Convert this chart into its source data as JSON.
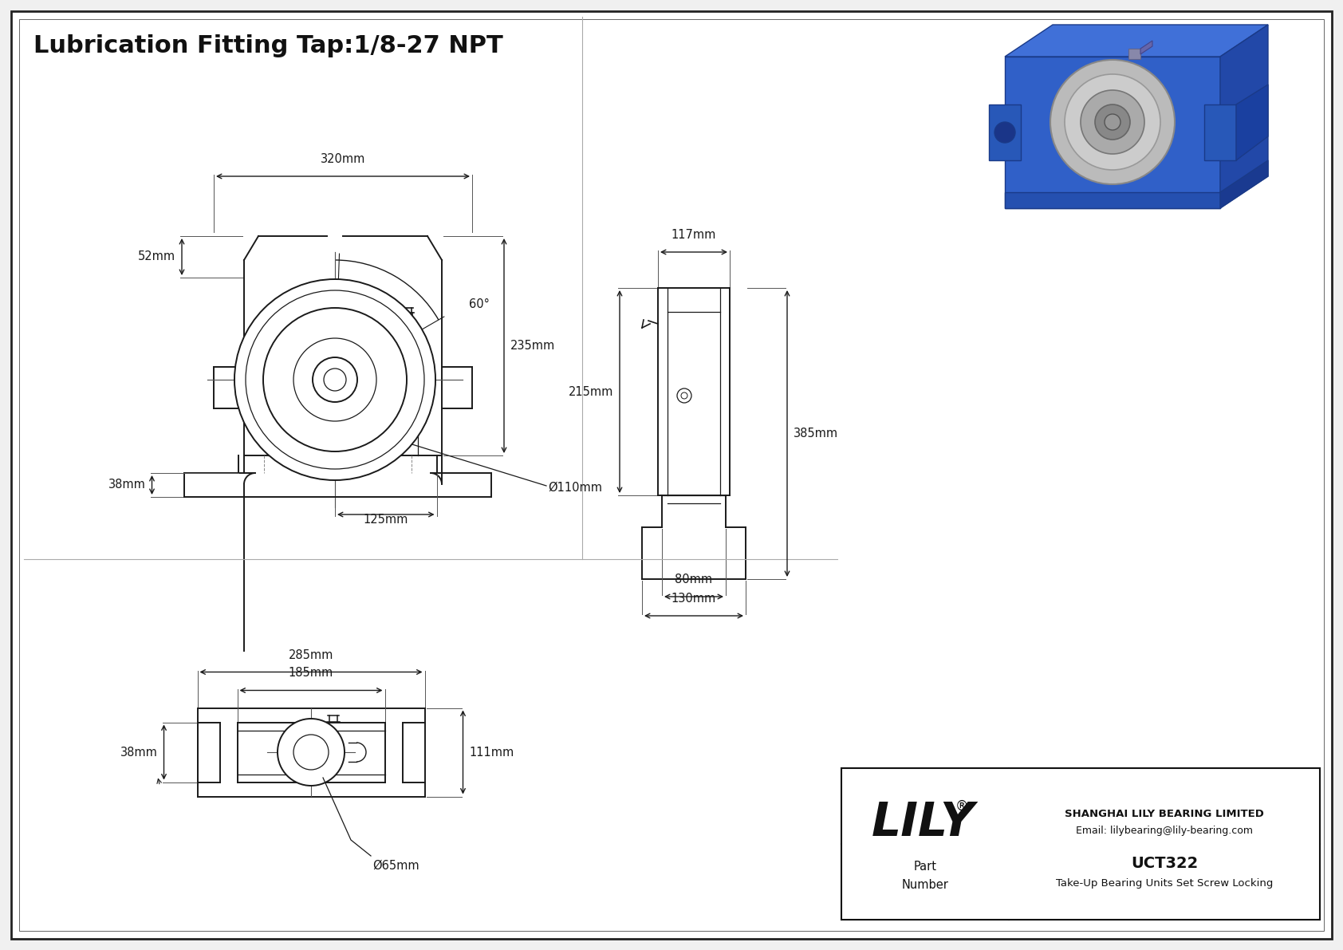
{
  "bg_color": "#f0f0f0",
  "line_color": "#1a1a1a",
  "dim_color": "#1a1a1a",
  "title_text": "Lubrication Fitting Tap:1/8-27 NPT",
  "part_number": "UCT322",
  "part_desc": "Take-Up Bearing Units Set Screw Locking",
  "company": "SHANGHAI LILY BEARING LIMITED",
  "company_email": "Email: lilybearing@lily-bearing.com",
  "dims": {
    "d320": "320mm",
    "d235": "235mm",
    "d52": "52mm",
    "d38a": "38mm",
    "d125": "125mm",
    "d110": "Ø110mm",
    "d60": "60°",
    "d117": "117mm",
    "d215": "215mm",
    "d385": "385mm",
    "d80": "80mm",
    "d130": "130mm",
    "d285": "285mm",
    "d185": "185mm",
    "d111": "111mm",
    "d38b": "38mm",
    "d65": "Ø65mm"
  }
}
